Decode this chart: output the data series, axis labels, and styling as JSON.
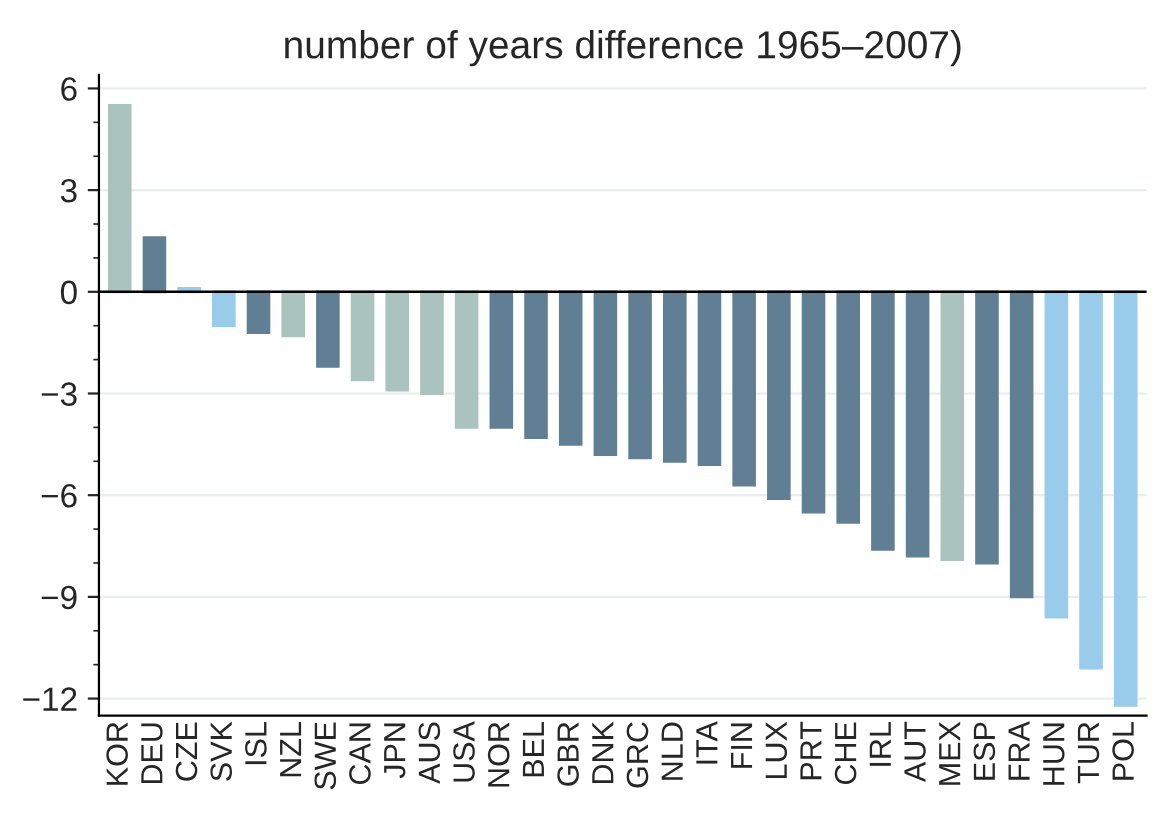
{
  "chart_data": {
    "type": "bar",
    "title": "number of years difference 1965–2007)",
    "categories": [
      "KOR",
      "DEU",
      "CZE",
      "SVK",
      "ISL",
      "NZL",
      "SWE",
      "CAN",
      "JPN",
      "AUS",
      "USA",
      "NOR",
      "BEL",
      "GBR",
      "DNK",
      "GRC",
      "NLD",
      "ITA",
      "FIN",
      "LUX",
      "PRT",
      "CHE",
      "IRL",
      "AUT",
      "MEX",
      "ESP",
      "FRA",
      "HUN",
      "TUR",
      "POL"
    ],
    "values": [
      5.5,
      1.6,
      0.1,
      -1.0,
      -1.2,
      -1.3,
      -2.2,
      -2.6,
      -2.9,
      -3.0,
      -4.0,
      -4.0,
      -4.3,
      -4.5,
      -4.8,
      -4.9,
      -5.0,
      -5.1,
      -5.7,
      -6.1,
      -6.5,
      -6.8,
      -7.6,
      -7.8,
      -7.9,
      -8.0,
      -9.0,
      -9.6,
      -11.1,
      -12.2
    ],
    "colors": [
      "#abc3bf",
      "#617f94",
      "#99cbea",
      "#99cbea",
      "#617f94",
      "#abc3bf",
      "#617f94",
      "#abc3bf",
      "#abc3bf",
      "#abc3bf",
      "#abc3bf",
      "#617f94",
      "#617f94",
      "#617f94",
      "#617f94",
      "#617f94",
      "#617f94",
      "#617f94",
      "#617f94",
      "#617f94",
      "#617f94",
      "#617f94",
      "#617f94",
      "#617f94",
      "#abc3bf",
      "#617f94",
      "#617f94",
      "#99cbea",
      "#99cbea",
      "#99cbea"
    ],
    "ylim": [
      -12.5,
      6.4
    ],
    "yticks": [
      {
        "value": -12,
        "label": "−12"
      },
      {
        "value": -9,
        "label": "−9"
      },
      {
        "value": -6,
        "label": "−6"
      },
      {
        "value": -3,
        "label": "−3"
      },
      0,
      3,
      6
    ],
    "ref_lines": [
      {
        "axis": "y",
        "value": 0,
        "color": "#000000"
      }
    ],
    "grid": "y",
    "legend": false
  }
}
